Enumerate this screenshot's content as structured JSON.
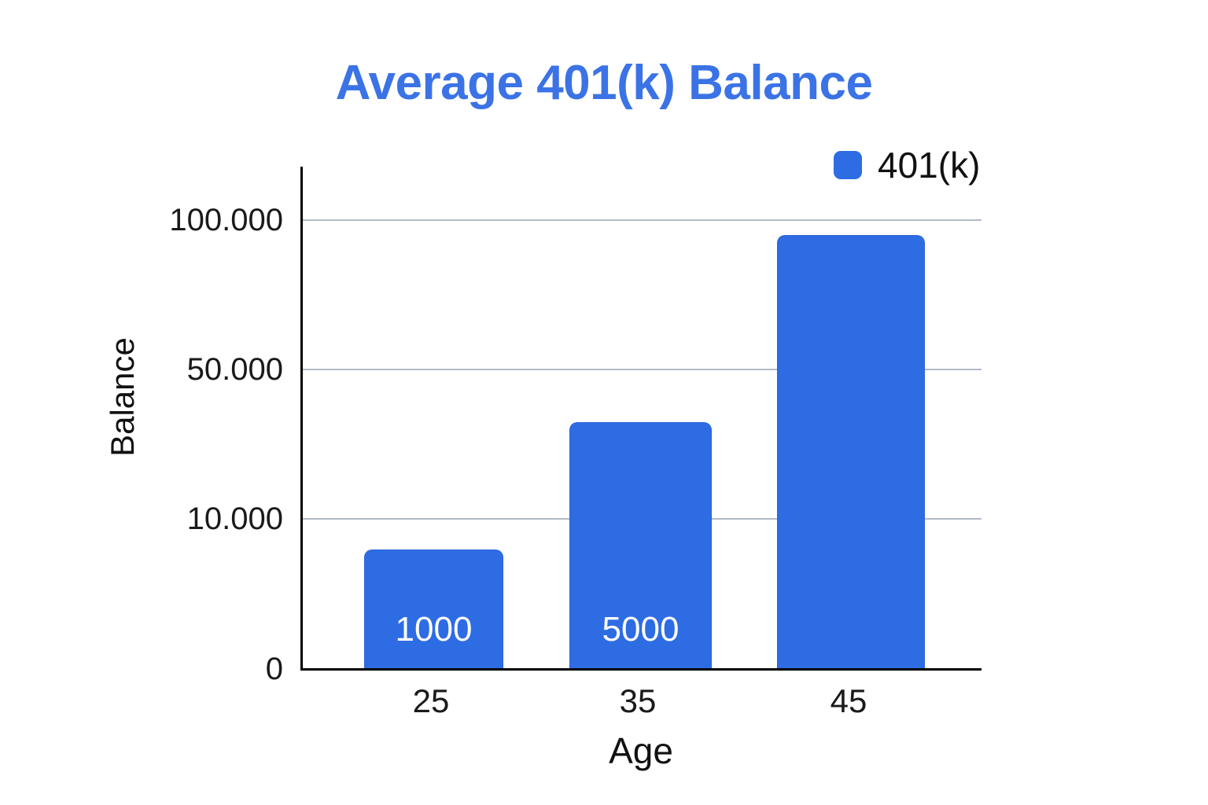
{
  "chart": {
    "title": "Average 401(k) Balance",
    "title_color": "#3b73e6",
    "legend": {
      "label": "401(k)",
      "swatch_color": "#2e6ce4"
    },
    "y_axis": {
      "title": "Balance",
      "ticks": [
        "100.000",
        "50.000",
        "10.000",
        "0"
      ]
    },
    "x_axis": {
      "title": "Age",
      "ticks": [
        "25",
        "35",
        "45"
      ]
    },
    "bar_labels": [
      "1000",
      "5000",
      ""
    ]
  },
  "chart_data": {
    "type": "bar",
    "title": "Average 401(k) Balance",
    "categories": [
      "25",
      "35",
      "45"
    ],
    "series": [
      {
        "name": "401(k)",
        "values": [
          1000,
          5000,
          95000
        ]
      }
    ],
    "data_labels_shown_on_bars": [
      "1000",
      "5000",
      null
    ],
    "xlabel": "Age",
    "ylabel": "Balance",
    "y_tick_labels": [
      "0",
      "10.000",
      "50.000",
      "100.000"
    ],
    "y_scale_note": "ticks 0 / 10.000 / 50.000 / 100.000 are evenly spaced (non-linear axis); third bar unlabeled, value estimated ~95.000",
    "ylim": [
      0,
      110000
    ],
    "grid": true,
    "legend_position": "top-right",
    "bar_color": "#2e6ce4",
    "gridline_color": "#b2bac6",
    "axis_color": "#000000"
  }
}
